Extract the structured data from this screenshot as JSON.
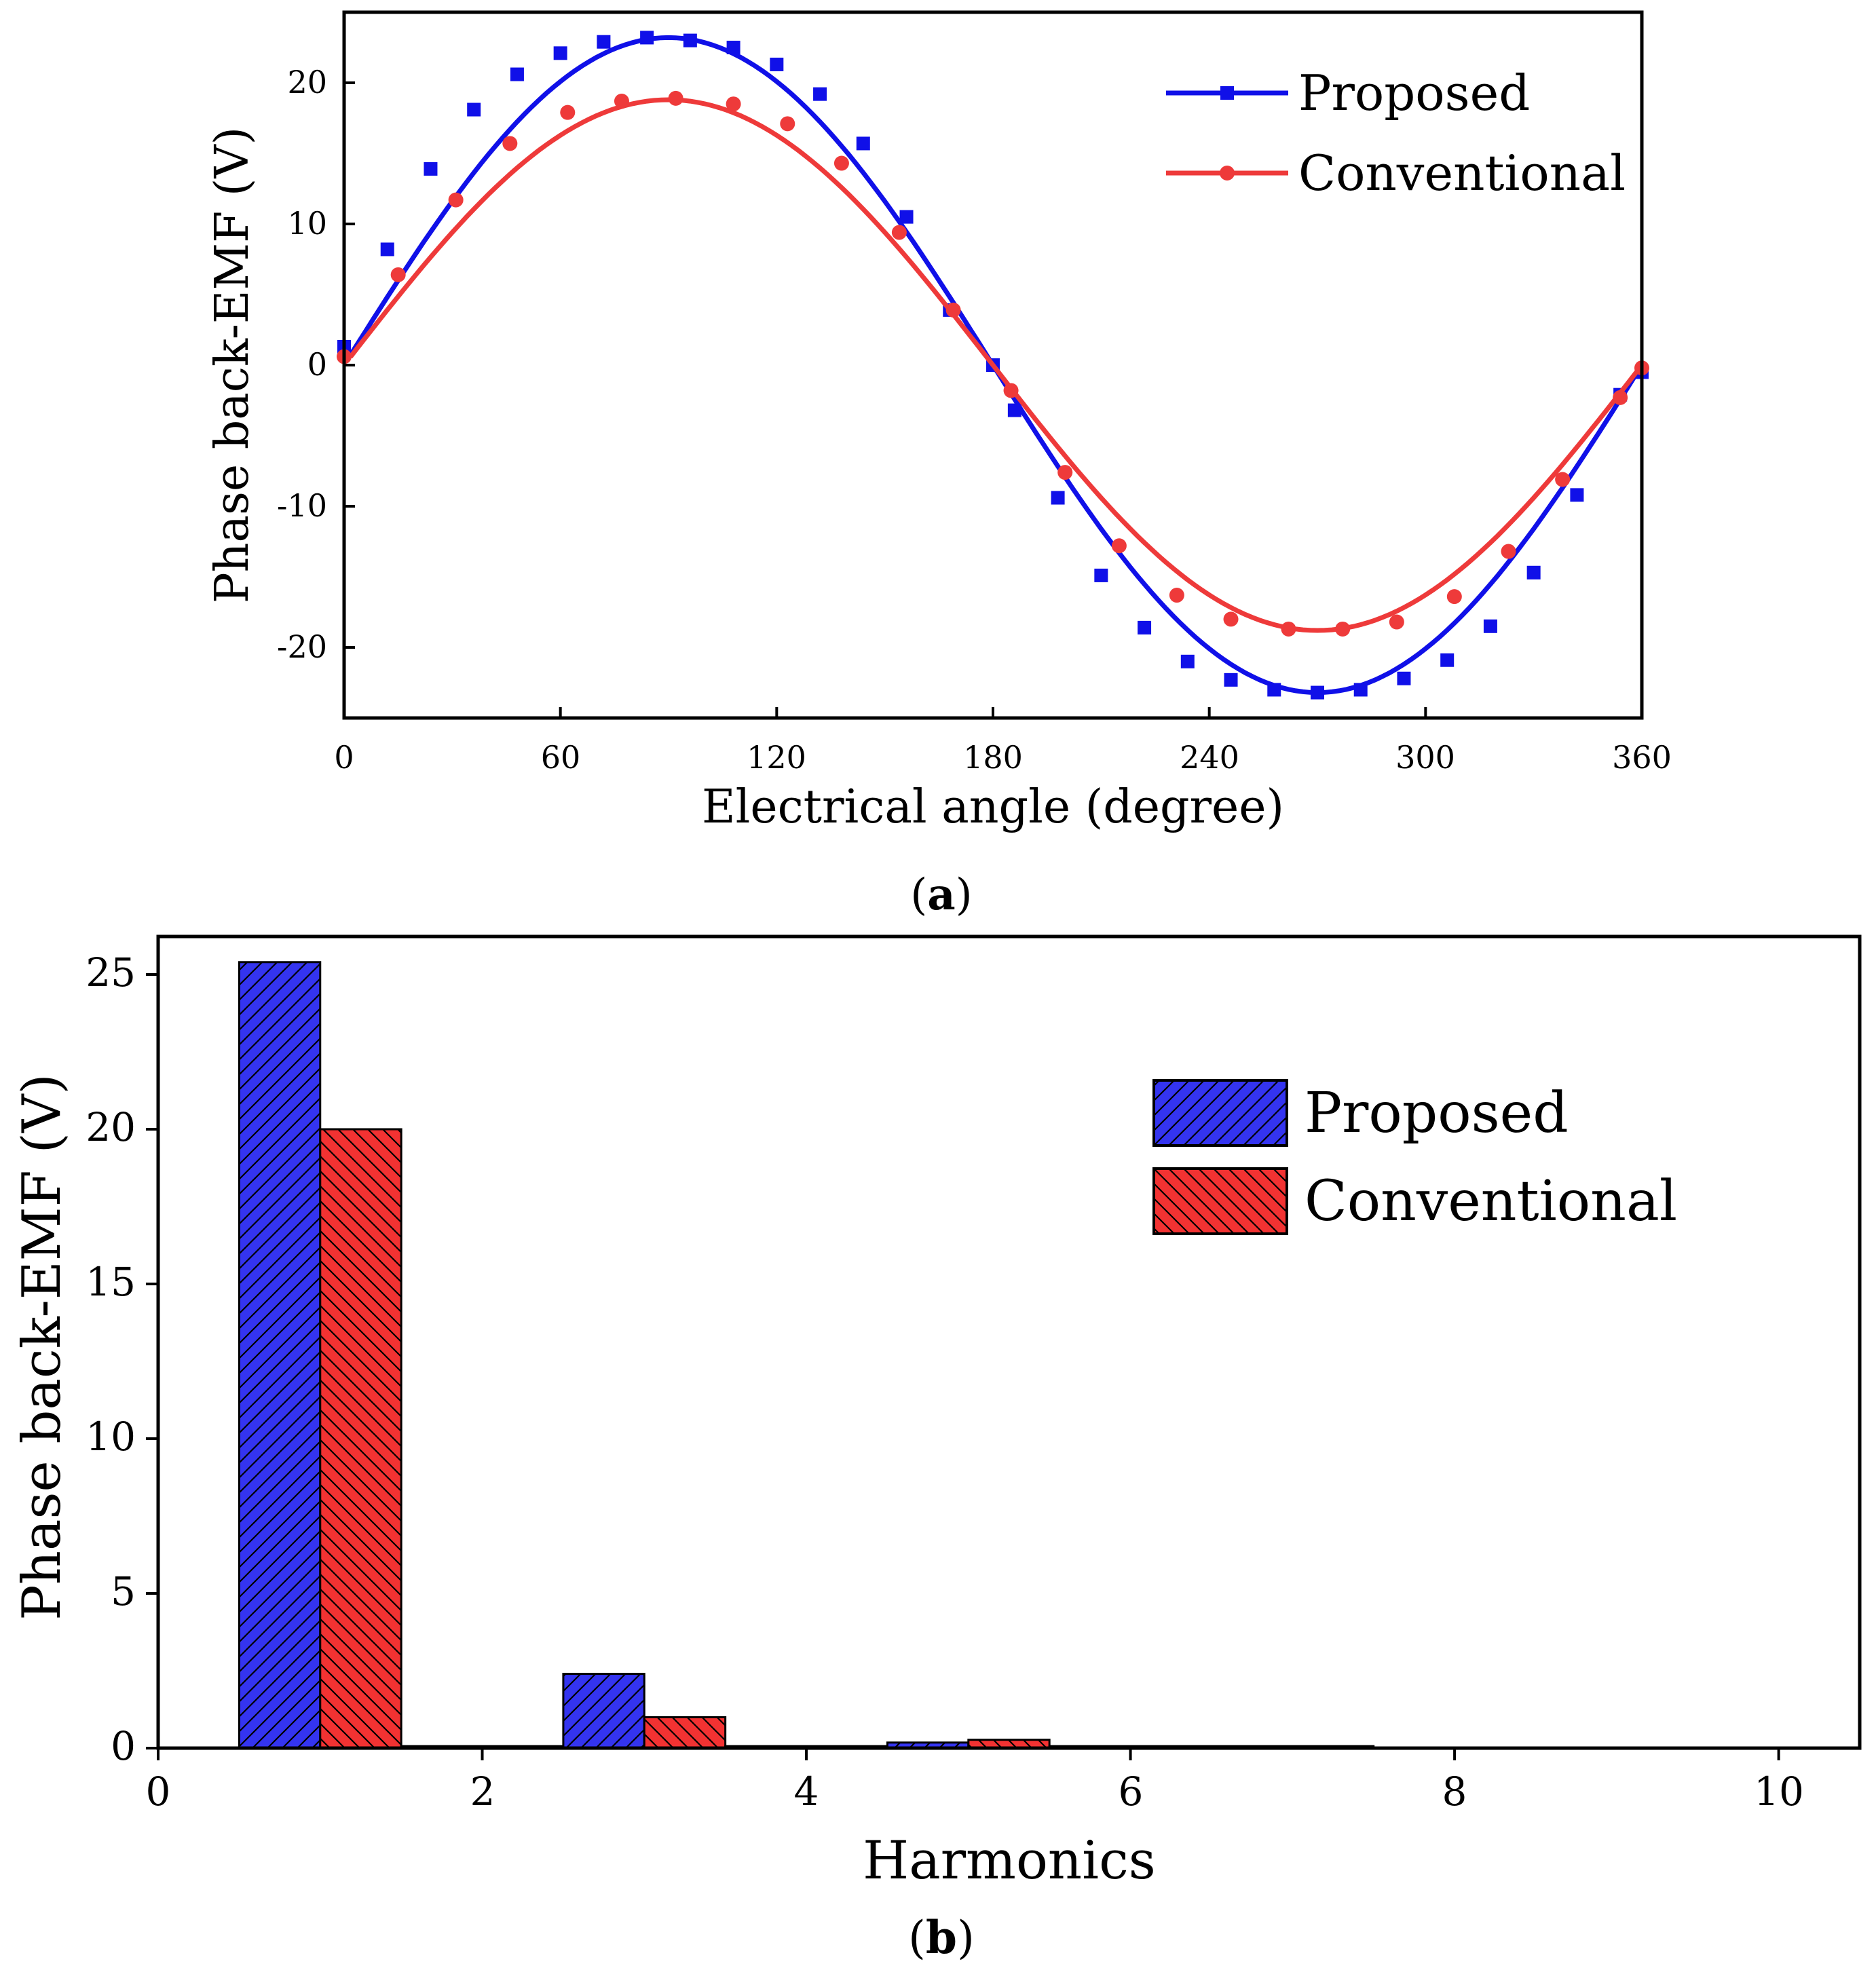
{
  "colors": {
    "proposed": "#1010e8",
    "conventional": "#ee3a3a",
    "proposed_bar": "#3434f0",
    "conventional_bar": "#f23232",
    "axis": "#000000"
  },
  "chart_data": [
    {
      "type": "line",
      "caption": {
        "open": "(",
        "letter": "a",
        "close": ")"
      },
      "xlabel": "Electrical angle (degree)",
      "ylabel": "Phase back-EMF (V)",
      "xlim": [
        0,
        360
      ],
      "ylim": [
        -25,
        25
      ],
      "xticks": [
        0,
        60,
        120,
        180,
        240,
        300,
        360
      ],
      "yticks": [
        -20,
        -10,
        0,
        10,
        20
      ],
      "legend": "top-right",
      "series": [
        {
          "name": "Proposed",
          "marker": "square",
          "amplitude": 23.2,
          "harmonic3": 0,
          "points": [
            [
              0,
              1.3
            ],
            [
              12,
              8.2
            ],
            [
              24,
              13.9
            ],
            [
              36,
              18.1
            ],
            [
              48,
              20.6
            ],
            [
              60,
              22.1
            ],
            [
              72,
              22.9
            ],
            [
              84,
              23.2
            ],
            [
              96,
              23.0
            ],
            [
              108,
              22.5
            ],
            [
              120,
              21.3
            ],
            [
              132,
              19.2
            ],
            [
              144,
              15.7
            ],
            [
              156,
              10.5
            ],
            [
              168,
              3.9
            ],
            [
              180,
              0
            ],
            [
              186,
              -3.2
            ],
            [
              198,
              -9.4
            ],
            [
              210,
              -14.9
            ],
            [
              222,
              -18.6
            ],
            [
              234,
              -21.0
            ],
            [
              246,
              -22.3
            ],
            [
              258,
              -23.0
            ],
            [
              270,
              -23.2
            ],
            [
              282,
              -23.0
            ],
            [
              294,
              -22.2
            ],
            [
              306,
              -20.9
            ],
            [
              318,
              -18.5
            ],
            [
              330,
              -14.7
            ],
            [
              342,
              -9.2
            ],
            [
              354,
              -2.1
            ],
            [
              360,
              -0.5
            ]
          ]
        },
        {
          "name": "Conventional",
          "marker": "circle",
          "amplitude": 18.8,
          "harmonic3": 0,
          "points": [
            [
              0,
              0.6
            ],
            [
              15,
              6.4
            ],
            [
              31,
              11.7
            ],
            [
              46,
              15.7
            ],
            [
              62,
              17.9
            ],
            [
              77,
              18.7
            ],
            [
              92,
              18.9
            ],
            [
              108,
              18.5
            ],
            [
              123,
              17.1
            ],
            [
              138,
              14.3
            ],
            [
              154,
              9.4
            ],
            [
              169,
              3.9
            ],
            [
              185,
              -1.8
            ],
            [
              200,
              -7.6
            ],
            [
              215,
              -12.8
            ],
            [
              231,
              -16.3
            ],
            [
              246,
              -18.0
            ],
            [
              262,
              -18.7
            ],
            [
              277,
              -18.7
            ],
            [
              292,
              -18.2
            ],
            [
              308,
              -16.4
            ],
            [
              323,
              -13.2
            ],
            [
              338,
              -8.1
            ],
            [
              354,
              -2.3
            ],
            [
              360,
              -0.2
            ]
          ]
        }
      ]
    },
    {
      "type": "bar",
      "caption": {
        "open": "(",
        "letter": "b",
        "close": ")"
      },
      "xlabel": "Harmonics",
      "ylabel": "Phase back-EMF (V)",
      "xlim": [
        0,
        10.5
      ],
      "ylim": [
        0,
        26
      ],
      "xticks": [
        0,
        2,
        4,
        6,
        8,
        10
      ],
      "yticks": [
        0,
        5,
        10,
        15,
        20,
        25
      ],
      "legend": "top-right",
      "categories": [
        1,
        2,
        3,
        4,
        5,
        6,
        7
      ],
      "series": [
        {
          "name": "Proposed",
          "values": [
            25.4,
            0.06,
            2.4,
            0.05,
            0.18,
            0.02,
            0.04
          ]
        },
        {
          "name": "Conventional",
          "values": [
            20.0,
            0.05,
            1.0,
            0.03,
            0.27,
            0.02,
            0.02
          ]
        }
      ]
    }
  ]
}
